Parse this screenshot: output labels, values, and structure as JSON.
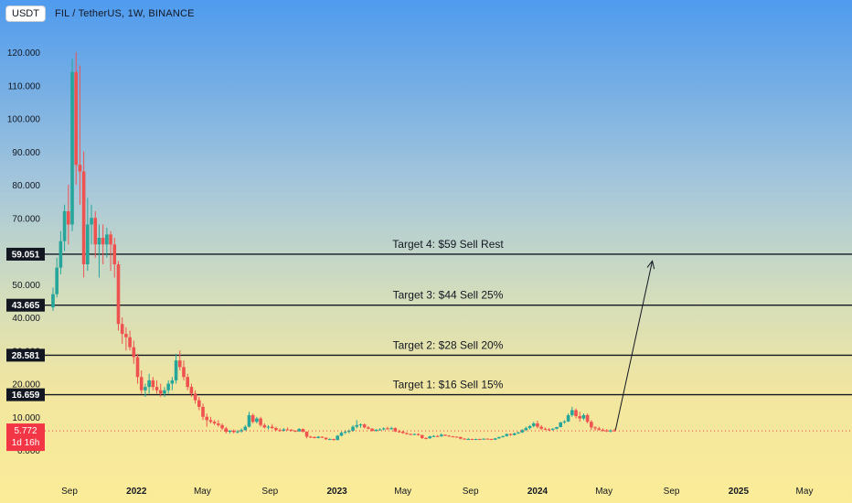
{
  "header": {
    "currency_button": "USDT",
    "title": "FIL / TetherUS, 1W, BINANCE"
  },
  "colors": {
    "up": "#26a69a",
    "down": "#ef5350",
    "level_line": "#131722",
    "level_badge": "#131722",
    "price_badge": "#f23645",
    "arrow": "#131722"
  },
  "price_badge": {
    "price": "5.772",
    "countdown": "1d 16h"
  },
  "chart_data": {
    "type": "candlestick",
    "y_ticks": [
      "120.000",
      "110.000",
      "100.000",
      "90.000",
      "80.000",
      "70.000",
      "60.000",
      "50.000",
      "40.000",
      "30.000",
      "20.000",
      "10.000",
      "0.000"
    ],
    "y_tick_values": [
      120,
      110,
      100,
      90,
      80,
      70,
      60,
      50,
      40,
      30,
      20,
      10,
      0
    ],
    "x_ticks": [
      {
        "label": "Sep",
        "bold": false
      },
      {
        "label": "2022",
        "bold": true
      },
      {
        "label": "May",
        "bold": false
      },
      {
        "label": "Sep",
        "bold": false
      },
      {
        "label": "2023",
        "bold": true
      },
      {
        "label": "May",
        "bold": false
      },
      {
        "label": "Sep",
        "bold": false
      },
      {
        "label": "2024",
        "bold": true
      },
      {
        "label": "May",
        "bold": false
      },
      {
        "label": "Sep",
        "bold": false
      },
      {
        "label": "2025",
        "bold": true
      },
      {
        "label": "May",
        "bold": false
      }
    ],
    "x_tick_dates": [
      "2021-09-01",
      "2022-01-01",
      "2022-05-01",
      "2022-09-01",
      "2023-01-01",
      "2023-05-01",
      "2023-09-01",
      "2024-01-01",
      "2024-05-01",
      "2024-09-01",
      "2025-01-01",
      "2025-05-01"
    ],
    "ylim": [
      -10,
      128
    ],
    "targets": [
      {
        "label": "Target 4: $59 Sell Rest",
        "price": 59.051,
        "badge": "59.051"
      },
      {
        "label": "Target 3: $44 Sell 25%",
        "price": 43.665,
        "badge": "43.665"
      },
      {
        "label": "Target 2: $28 Sell 20%",
        "price": 28.581,
        "badge": "28.581"
      },
      {
        "label": "Target 1: $16 Sell 15%",
        "price": 16.659,
        "badge": "16.659"
      }
    ],
    "arrow": {
      "from_date": "2024-05-22",
      "from_price": 6,
      "to_date": "2024-07-28",
      "to_price": 57
    },
    "candles": [
      {
        "date": "2021-08-02",
        "o": 43,
        "h": 49,
        "l": 42,
        "c": 47
      },
      {
        "date": "2021-08-09",
        "o": 47,
        "h": 58,
        "l": 46,
        "c": 55
      },
      {
        "date": "2021-08-16",
        "o": 55,
        "h": 66,
        "l": 53,
        "c": 63
      },
      {
        "date": "2021-08-23",
        "o": 63,
        "h": 74,
        "l": 60,
        "c": 72
      },
      {
        "date": "2021-08-30",
        "o": 72,
        "h": 80,
        "l": 62,
        "c": 68
      },
      {
        "date": "2021-09-06",
        "o": 68,
        "h": 118,
        "l": 66,
        "c": 114
      },
      {
        "date": "2021-09-13",
        "o": 114,
        "h": 120,
        "l": 80,
        "c": 86
      },
      {
        "date": "2021-09-20",
        "o": 86,
        "h": 116,
        "l": 74,
        "c": 84
      },
      {
        "date": "2021-09-27",
        "o": 84,
        "h": 90,
        "l": 52,
        "c": 56
      },
      {
        "date": "2021-10-04",
        "o": 56,
        "h": 76,
        "l": 54,
        "c": 68
      },
      {
        "date": "2021-10-11",
        "o": 68,
        "h": 74,
        "l": 62,
        "c": 70
      },
      {
        "date": "2021-10-18",
        "o": 70,
        "h": 72,
        "l": 58,
        "c": 62
      },
      {
        "date": "2021-10-25",
        "o": 62,
        "h": 68,
        "l": 52,
        "c": 64
      },
      {
        "date": "2021-11-01",
        "o": 64,
        "h": 68,
        "l": 56,
        "c": 62
      },
      {
        "date": "2021-11-08",
        "o": 62,
        "h": 67,
        "l": 58,
        "c": 65
      },
      {
        "date": "2021-11-15",
        "o": 65,
        "h": 66,
        "l": 54,
        "c": 62
      },
      {
        "date": "2021-11-22",
        "o": 62,
        "h": 64,
        "l": 52,
        "c": 56
      },
      {
        "date": "2021-11-29",
        "o": 56,
        "h": 57,
        "l": 36,
        "c": 38
      },
      {
        "date": "2021-12-06",
        "o": 38,
        "h": 40,
        "l": 32,
        "c": 35
      },
      {
        "date": "2021-12-13",
        "o": 35,
        "h": 37,
        "l": 30,
        "c": 34
      },
      {
        "date": "2021-12-20",
        "o": 34,
        "h": 36,
        "l": 30,
        "c": 31
      },
      {
        "date": "2021-12-27",
        "o": 31,
        "h": 33,
        "l": 26,
        "c": 28
      },
      {
        "date": "2022-01-03",
        "o": 28,
        "h": 29,
        "l": 20,
        "c": 22
      },
      {
        "date": "2022-01-10",
        "o": 22,
        "h": 24,
        "l": 17,
        "c": 18
      },
      {
        "date": "2022-01-17",
        "o": 18,
        "h": 20,
        "l": 16,
        "c": 19
      },
      {
        "date": "2022-01-24",
        "o": 19,
        "h": 23,
        "l": 17,
        "c": 21
      },
      {
        "date": "2022-01-31",
        "o": 21,
        "h": 22,
        "l": 18,
        "c": 19
      },
      {
        "date": "2022-02-07",
        "o": 19,
        "h": 21,
        "l": 17,
        "c": 18
      },
      {
        "date": "2022-02-14",
        "o": 18,
        "h": 20,
        "l": 16,
        "c": 17
      },
      {
        "date": "2022-02-21",
        "o": 17,
        "h": 19,
        "l": 16,
        "c": 18
      },
      {
        "date": "2022-02-28",
        "o": 18,
        "h": 21,
        "l": 17,
        "c": 20
      },
      {
        "date": "2022-03-07",
        "o": 20,
        "h": 22,
        "l": 18,
        "c": 21
      },
      {
        "date": "2022-03-14",
        "o": 21,
        "h": 29,
        "l": 20,
        "c": 27
      },
      {
        "date": "2022-03-21",
        "o": 27,
        "h": 30,
        "l": 24,
        "c": 25
      },
      {
        "date": "2022-03-28",
        "o": 25,
        "h": 27,
        "l": 21,
        "c": 22
      },
      {
        "date": "2022-04-04",
        "o": 22,
        "h": 23,
        "l": 18,
        "c": 19
      },
      {
        "date": "2022-04-11",
        "o": 19,
        "h": 20,
        "l": 16,
        "c": 17
      },
      {
        "date": "2022-04-18",
        "o": 17,
        "h": 18,
        "l": 14,
        "c": 15
      },
      {
        "date": "2022-04-25",
        "o": 15,
        "h": 16,
        "l": 12,
        "c": 13
      },
      {
        "date": "2022-05-02",
        "o": 13,
        "h": 14,
        "l": 9,
        "c": 10
      },
      {
        "date": "2022-05-09",
        "o": 10,
        "h": 11,
        "l": 7,
        "c": 9
      },
      {
        "date": "2022-05-16",
        "o": 9,
        "h": 10,
        "l": 8,
        "c": 8.5
      },
      {
        "date": "2022-05-23",
        "o": 8.5,
        "h": 9,
        "l": 7.5,
        "c": 8
      },
      {
        "date": "2022-05-30",
        "o": 8,
        "h": 9,
        "l": 7,
        "c": 7.5
      },
      {
        "date": "2022-06-06",
        "o": 7.5,
        "h": 8,
        "l": 6,
        "c": 6.5
      },
      {
        "date": "2022-06-13",
        "o": 6.5,
        "h": 7,
        "l": 5,
        "c": 5.5
      },
      {
        "date": "2022-06-20",
        "o": 5.5,
        "h": 6,
        "l": 5,
        "c": 5.8
      },
      {
        "date": "2022-06-27",
        "o": 5.8,
        "h": 6.2,
        "l": 5,
        "c": 5.4
      },
      {
        "date": "2022-07-04",
        "o": 5.4,
        "h": 6,
        "l": 5,
        "c": 5.6
      },
      {
        "date": "2022-07-11",
        "o": 5.6,
        "h": 6.5,
        "l": 5.2,
        "c": 6
      },
      {
        "date": "2022-07-18",
        "o": 6,
        "h": 7.5,
        "l": 5.8,
        "c": 7
      },
      {
        "date": "2022-07-25",
        "o": 7,
        "h": 11.5,
        "l": 6.8,
        "c": 10.5
      },
      {
        "date": "2022-08-01",
        "o": 10.5,
        "h": 11,
        "l": 8,
        "c": 8.5
      },
      {
        "date": "2022-08-08",
        "o": 8.5,
        "h": 10,
        "l": 8,
        "c": 9.5
      },
      {
        "date": "2022-08-15",
        "o": 9.5,
        "h": 10,
        "l": 7,
        "c": 7.5
      },
      {
        "date": "2022-08-22",
        "o": 7.5,
        "h": 8,
        "l": 6.5,
        "c": 6.8
      },
      {
        "date": "2022-08-29",
        "o": 6.8,
        "h": 7.5,
        "l": 6.2,
        "c": 7
      },
      {
        "date": "2022-09-05",
        "o": 7,
        "h": 7.8,
        "l": 6.3,
        "c": 6.6
      },
      {
        "date": "2022-09-12",
        "o": 6.6,
        "h": 7,
        "l": 5.8,
        "c": 6
      },
      {
        "date": "2022-09-19",
        "o": 6,
        "h": 6.5,
        "l": 5.5,
        "c": 5.8
      },
      {
        "date": "2022-09-26",
        "o": 5.8,
        "h": 6.6,
        "l": 5.6,
        "c": 6.2
      },
      {
        "date": "2022-10-03",
        "o": 6.2,
        "h": 6.8,
        "l": 5.9,
        "c": 6.1
      },
      {
        "date": "2022-10-10",
        "o": 6.1,
        "h": 6.3,
        "l": 5.6,
        "c": 5.8
      },
      {
        "date": "2022-10-17",
        "o": 5.8,
        "h": 6,
        "l": 5.4,
        "c": 5.6
      },
      {
        "date": "2022-10-24",
        "o": 5.6,
        "h": 6.6,
        "l": 5.5,
        "c": 6.3
      },
      {
        "date": "2022-10-31",
        "o": 6.3,
        "h": 6.5,
        "l": 5.3,
        "c": 5.5
      },
      {
        "date": "2022-11-07",
        "o": 5.5,
        "h": 5.6,
        "l": 3.5,
        "c": 4
      },
      {
        "date": "2022-11-14",
        "o": 4,
        "h": 4.3,
        "l": 3.6,
        "c": 3.9
      },
      {
        "date": "2022-11-21",
        "o": 3.9,
        "h": 4.1,
        "l": 3.5,
        "c": 3.6
      },
      {
        "date": "2022-11-28",
        "o": 3.6,
        "h": 4.2,
        "l": 3.5,
        "c": 4
      },
      {
        "date": "2022-12-05",
        "o": 4,
        "h": 4.1,
        "l": 3.6,
        "c": 3.7
      },
      {
        "date": "2022-12-12",
        "o": 3.7,
        "h": 3.8,
        "l": 3.1,
        "c": 3.2
      },
      {
        "date": "2022-12-19",
        "o": 3.2,
        "h": 3.5,
        "l": 3,
        "c": 3.3
      },
      {
        "date": "2022-12-26",
        "o": 3.3,
        "h": 3.4,
        "l": 2.8,
        "c": 3
      },
      {
        "date": "2023-01-02",
        "o": 3,
        "h": 4.5,
        "l": 2.9,
        "c": 4.3
      },
      {
        "date": "2023-01-09",
        "o": 4.3,
        "h": 5.5,
        "l": 4.1,
        "c": 5.2
      },
      {
        "date": "2023-01-16",
        "o": 5.2,
        "h": 6,
        "l": 4.8,
        "c": 5.5
      },
      {
        "date": "2023-01-23",
        "o": 5.5,
        "h": 6.2,
        "l": 5,
        "c": 5.8
      },
      {
        "date": "2023-01-30",
        "o": 5.8,
        "h": 7.5,
        "l": 5.5,
        "c": 7
      },
      {
        "date": "2023-02-06",
        "o": 7,
        "h": 9,
        "l": 6.5,
        "c": 7.5
      },
      {
        "date": "2023-02-13",
        "o": 7.5,
        "h": 8,
        "l": 6.7,
        "c": 7.7
      },
      {
        "date": "2023-02-20",
        "o": 7.7,
        "h": 8,
        "l": 6.5,
        "c": 6.8
      },
      {
        "date": "2023-02-27",
        "o": 6.8,
        "h": 7.2,
        "l": 6.2,
        "c": 6.4
      },
      {
        "date": "2023-03-06",
        "o": 6.4,
        "h": 6.6,
        "l": 5.5,
        "c": 5.8
      },
      {
        "date": "2023-03-13",
        "o": 5.8,
        "h": 6.3,
        "l": 5.5,
        "c": 6.1
      },
      {
        "date": "2023-03-20",
        "o": 6.1,
        "h": 6.5,
        "l": 5.8,
        "c": 6.2
      },
      {
        "date": "2023-03-27",
        "o": 6.2,
        "h": 6.8,
        "l": 5.9,
        "c": 6.5
      },
      {
        "date": "2023-04-03",
        "o": 6.5,
        "h": 7,
        "l": 6.1,
        "c": 6.3
      },
      {
        "date": "2023-04-10",
        "o": 6.3,
        "h": 7,
        "l": 6,
        "c": 6.6
      },
      {
        "date": "2023-04-17",
        "o": 6.6,
        "h": 6.8,
        "l": 5.4,
        "c": 5.6
      },
      {
        "date": "2023-04-24",
        "o": 5.6,
        "h": 6,
        "l": 5.2,
        "c": 5.5
      },
      {
        "date": "2023-05-01",
        "o": 5.5,
        "h": 5.8,
        "l": 4.9,
        "c": 5.1
      },
      {
        "date": "2023-05-08",
        "o": 5.1,
        "h": 5.3,
        "l": 4.6,
        "c": 4.8
      },
      {
        "date": "2023-05-15",
        "o": 4.8,
        "h": 5,
        "l": 4.5,
        "c": 4.7
      },
      {
        "date": "2023-05-22",
        "o": 4.7,
        "h": 5,
        "l": 4.5,
        "c": 4.8
      },
      {
        "date": "2023-05-29",
        "o": 4.8,
        "h": 5,
        "l": 4.3,
        "c": 4.5
      },
      {
        "date": "2023-06-05",
        "o": 4.5,
        "h": 4.6,
        "l": 3.3,
        "c": 3.6
      },
      {
        "date": "2023-06-12",
        "o": 3.6,
        "h": 3.8,
        "l": 3.2,
        "c": 3.5
      },
      {
        "date": "2023-06-19",
        "o": 3.5,
        "h": 4.3,
        "l": 3.4,
        "c": 4.1
      },
      {
        "date": "2023-06-26",
        "o": 4.1,
        "h": 4.5,
        "l": 3.9,
        "c": 4.2
      },
      {
        "date": "2023-07-03",
        "o": 4.2,
        "h": 4.5,
        "l": 3.9,
        "c": 4.1
      },
      {
        "date": "2023-07-10",
        "o": 4.1,
        "h": 5,
        "l": 4,
        "c": 4.6
      },
      {
        "date": "2023-07-17",
        "o": 4.6,
        "h": 4.7,
        "l": 4.2,
        "c": 4.3
      },
      {
        "date": "2023-07-24",
        "o": 4.3,
        "h": 4.5,
        "l": 4,
        "c": 4.1
      },
      {
        "date": "2023-07-31",
        "o": 4.1,
        "h": 4.2,
        "l": 3.9,
        "c": 4
      },
      {
        "date": "2023-08-07",
        "o": 4,
        "h": 4.1,
        "l": 3.8,
        "c": 3.9
      },
      {
        "date": "2023-08-14",
        "o": 3.9,
        "h": 4,
        "l": 3.2,
        "c": 3.4
      },
      {
        "date": "2023-08-21",
        "o": 3.4,
        "h": 3.6,
        "l": 3.2,
        "c": 3.3
      },
      {
        "date": "2023-08-28",
        "o": 3.3,
        "h": 3.6,
        "l": 3.2,
        "c": 3.3
      },
      {
        "date": "2023-09-04",
        "o": 3.3,
        "h": 3.4,
        "l": 3.1,
        "c": 3.2
      },
      {
        "date": "2023-09-11",
        "o": 3.2,
        "h": 3.4,
        "l": 3,
        "c": 3.3
      },
      {
        "date": "2023-09-18",
        "o": 3.3,
        "h": 3.4,
        "l": 3.1,
        "c": 3.2
      },
      {
        "date": "2023-09-25",
        "o": 3.2,
        "h": 3.5,
        "l": 3.1,
        "c": 3.4
      },
      {
        "date": "2023-10-02",
        "o": 3.4,
        "h": 3.5,
        "l": 3.2,
        "c": 3.3
      },
      {
        "date": "2023-10-09",
        "o": 3.3,
        "h": 3.4,
        "l": 3,
        "c": 3.1
      },
      {
        "date": "2023-10-16",
        "o": 3.1,
        "h": 3.6,
        "l": 3,
        "c": 3.5
      },
      {
        "date": "2023-10-23",
        "o": 3.5,
        "h": 4,
        "l": 3.4,
        "c": 3.9
      },
      {
        "date": "2023-10-30",
        "o": 3.9,
        "h": 4.3,
        "l": 3.7,
        "c": 4.2
      },
      {
        "date": "2023-11-06",
        "o": 4.2,
        "h": 5,
        "l": 4,
        "c": 4.8
      },
      {
        "date": "2023-11-13",
        "o": 4.8,
        "h": 5,
        "l": 4.3,
        "c": 4.5
      },
      {
        "date": "2023-11-20",
        "o": 4.5,
        "h": 5.2,
        "l": 4.4,
        "c": 5
      },
      {
        "date": "2023-11-27",
        "o": 5,
        "h": 5.5,
        "l": 4.8,
        "c": 5.3
      },
      {
        "date": "2023-12-04",
        "o": 5.3,
        "h": 6.3,
        "l": 5.1,
        "c": 6
      },
      {
        "date": "2023-12-11",
        "o": 6,
        "h": 7,
        "l": 5.7,
        "c": 6.6
      },
      {
        "date": "2023-12-18",
        "o": 6.6,
        "h": 7.5,
        "l": 6.2,
        "c": 7.2
      },
      {
        "date": "2023-12-25",
        "o": 7.2,
        "h": 8.5,
        "l": 6.8,
        "c": 8
      },
      {
        "date": "2024-01-01",
        "o": 8,
        "h": 8.8,
        "l": 6.5,
        "c": 7
      },
      {
        "date": "2024-01-08",
        "o": 7,
        "h": 7.5,
        "l": 6,
        "c": 6.4
      },
      {
        "date": "2024-01-15",
        "o": 6.4,
        "h": 6.8,
        "l": 6,
        "c": 6.2
      },
      {
        "date": "2024-01-22",
        "o": 6.2,
        "h": 6.6,
        "l": 5.8,
        "c": 6.1
      },
      {
        "date": "2024-01-29",
        "o": 6.1,
        "h": 6.6,
        "l": 5.8,
        "c": 6.4
      },
      {
        "date": "2024-02-05",
        "o": 6.4,
        "h": 7,
        "l": 6.2,
        "c": 6.9
      },
      {
        "date": "2024-02-12",
        "o": 6.9,
        "h": 8.5,
        "l": 6.8,
        "c": 8.3
      },
      {
        "date": "2024-02-19",
        "o": 8.3,
        "h": 9,
        "l": 7.9,
        "c": 8.6
      },
      {
        "date": "2024-02-26",
        "o": 8.6,
        "h": 11,
        "l": 8.4,
        "c": 10.5
      },
      {
        "date": "2024-03-04",
        "o": 10.5,
        "h": 13,
        "l": 10,
        "c": 12
      },
      {
        "date": "2024-03-11",
        "o": 12,
        "h": 12.5,
        "l": 9.5,
        "c": 10.2
      },
      {
        "date": "2024-03-18",
        "o": 10.2,
        "h": 11.5,
        "l": 8.5,
        "c": 9.5
      },
      {
        "date": "2024-03-25",
        "o": 9.5,
        "h": 11,
        "l": 9,
        "c": 10.5
      },
      {
        "date": "2024-04-01",
        "o": 10.5,
        "h": 11,
        "l": 8,
        "c": 8.5
      },
      {
        "date": "2024-04-08",
        "o": 8.5,
        "h": 9,
        "l": 6,
        "c": 6.8
      },
      {
        "date": "2024-04-15",
        "o": 6.8,
        "h": 7.2,
        "l": 5.8,
        "c": 6.5
      },
      {
        "date": "2024-04-22",
        "o": 6.5,
        "h": 7,
        "l": 5.8,
        "c": 6.1
      },
      {
        "date": "2024-04-29",
        "o": 6.1,
        "h": 6.5,
        "l": 5.5,
        "c": 5.9
      },
      {
        "date": "2024-05-06",
        "o": 5.9,
        "h": 6.3,
        "l": 5.4,
        "c": 5.6
      },
      {
        "date": "2024-05-13",
        "o": 5.6,
        "h": 6.2,
        "l": 5.3,
        "c": 5.9
      },
      {
        "date": "2024-05-20",
        "o": 5.9,
        "h": 6.4,
        "l": 5.5,
        "c": 5.772
      }
    ]
  }
}
